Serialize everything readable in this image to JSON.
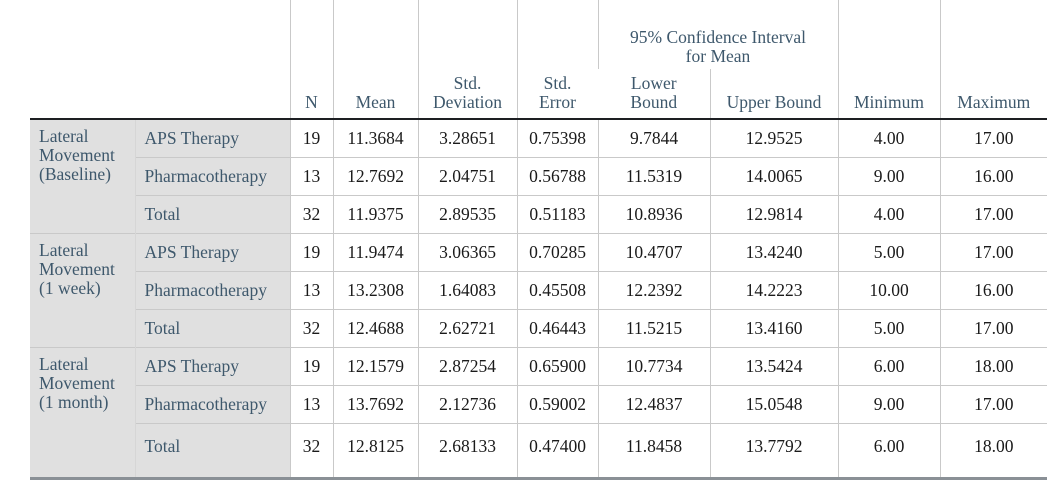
{
  "table": {
    "headers": {
      "n": "N",
      "mean": "Mean",
      "std_deviation": "Std.\nDeviation",
      "std_error": "Std.\nError",
      "ci": "95% Confidence Interval\nfor Mean",
      "lower_bound": "Lower\nBound",
      "upper_bound": "Upper Bound",
      "minimum": "Minimum",
      "maximum": "Maximum"
    },
    "value_columns": [
      "N",
      "Mean",
      "Std. Deviation",
      "Std. Error",
      "Lower Bound",
      "Upper Bound",
      "Minimum",
      "Maximum"
    ],
    "groups": [
      {
        "label": "Lateral Movement (Baseline)",
        "rows": [
          {
            "label": "APS Therapy",
            "values": [
              "19",
              "11.3684",
              "3.28651",
              "0.75398",
              "9.7844",
              "12.9525",
              "4.00",
              "17.00"
            ]
          },
          {
            "label": "Pharmacotherapy",
            "values": [
              "13",
              "12.7692",
              "2.04751",
              "0.56788",
              "11.5319",
              "14.0065",
              "9.00",
              "16.00"
            ]
          },
          {
            "label": "Total",
            "values": [
              "32",
              "11.9375",
              "2.89535",
              "0.51183",
              "10.8936",
              "12.9814",
              "4.00",
              "17.00"
            ]
          }
        ]
      },
      {
        "label": "Lateral Movement (1 week)",
        "rows": [
          {
            "label": "APS Therapy",
            "values": [
              "19",
              "11.9474",
              "3.06365",
              "0.70285",
              "10.4707",
              "13.4240",
              "5.00",
              "17.00"
            ]
          },
          {
            "label": "Pharmacotherapy",
            "values": [
              "13",
              "13.2308",
              "1.64083",
              "0.45508",
              "12.2392",
              "14.2223",
              "10.00",
              "16.00"
            ]
          },
          {
            "label": "Total",
            "values": [
              "32",
              "12.4688",
              "2.62721",
              "0.46443",
              "11.5215",
              "13.4160",
              "5.00",
              "17.00"
            ]
          }
        ]
      },
      {
        "label": "Lateral Movement (1 month)",
        "rows": [
          {
            "label": "APS Therapy",
            "values": [
              "19",
              "12.1579",
              "2.87254",
              "0.65900",
              "10.7734",
              "13.5424",
              "6.00",
              "18.00"
            ]
          },
          {
            "label": "Pharmacotherapy",
            "values": [
              "13",
              "13.7692",
              "2.12736",
              "0.59002",
              "12.4837",
              "15.0548",
              "9.00",
              "17.00"
            ]
          },
          {
            "label": "Total",
            "values": [
              "32",
              "12.8125",
              "2.68133",
              "0.47400",
              "11.8458",
              "13.7792",
              "6.00",
              "18.00"
            ]
          }
        ]
      }
    ]
  },
  "colors": {
    "label_text": "#3e586c",
    "data_text": "#1a1a1a",
    "label_background": "#e0e0e0",
    "grid_line": "#c9c9c9",
    "header_rule": "#1d1f22",
    "bottom_rule": "#8a9096"
  }
}
